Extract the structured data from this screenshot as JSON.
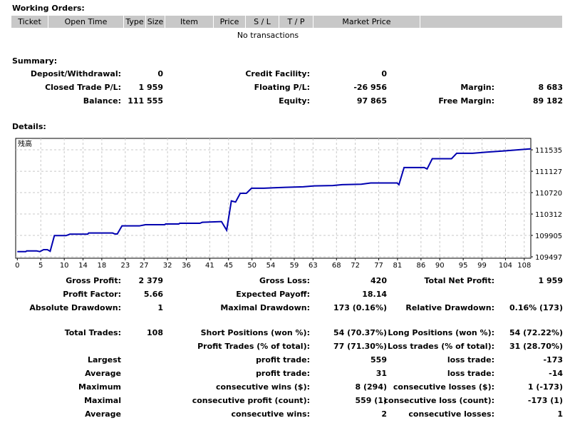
{
  "working_orders": {
    "title": "Working Orders:",
    "columns": [
      "Ticket",
      "Open Time",
      "Type",
      "Size",
      "Item",
      "Price",
      "S / L",
      "T / P",
      "Market Price",
      ""
    ],
    "empty_text": "No transactions"
  },
  "summary": {
    "title": "Summary:",
    "rows": [
      [
        "Deposit/Withdrawal:",
        "0",
        "Credit Facility:",
        "0",
        "",
        ""
      ],
      [
        "Closed Trade P/L:",
        "1 959",
        "Floating P/L:",
        "-26 956",
        "Margin:",
        "8 683"
      ],
      [
        "Balance:",
        "111 555",
        "Equity:",
        "97 865",
        "Free Margin:",
        "89 182"
      ]
    ]
  },
  "details": {
    "title": "Details:"
  },
  "chart_data": {
    "type": "line",
    "title": "残高",
    "series_color": "#0000b0",
    "x_ticks": [
      0,
      5,
      10,
      14,
      18,
      23,
      27,
      32,
      36,
      41,
      45,
      50,
      54,
      59,
      63,
      68,
      72,
      77,
      81,
      86,
      90,
      95,
      99,
      104,
      108
    ],
    "y_ticks": [
      111535,
      111127,
      110720,
      110312,
      109905,
      109497
    ],
    "xlim": [
      -0.35,
      109.4
    ],
    "ylim": [
      109470,
      111753
    ],
    "grid": true,
    "points": [
      [
        0,
        109596
      ],
      [
        1.8,
        109596
      ],
      [
        2,
        109610
      ],
      [
        4.1,
        109610
      ],
      [
        4.8,
        109596
      ],
      [
        5.6,
        109633
      ],
      [
        6.4,
        109633
      ],
      [
        7,
        109602
      ],
      [
        7.9,
        109901
      ],
      [
        10.4,
        109901
      ],
      [
        11.2,
        109928
      ],
      [
        15,
        109928
      ],
      [
        15.2,
        109950
      ],
      [
        20.3,
        109950
      ],
      [
        20.8,
        109932
      ],
      [
        21.3,
        109932
      ],
      [
        22.3,
        110086
      ],
      [
        26,
        110086
      ],
      [
        27.3,
        110109
      ],
      [
        31.4,
        110109
      ],
      [
        31.6,
        110122
      ],
      [
        34.4,
        110122
      ],
      [
        34.6,
        110136
      ],
      [
        38.9,
        110136
      ],
      [
        39.4,
        110154
      ],
      [
        43.5,
        110168
      ],
      [
        44.6,
        110004
      ],
      [
        45.6,
        110562
      ],
      [
        46.5,
        110540
      ],
      [
        47.5,
        110707
      ],
      [
        48.8,
        110707
      ],
      [
        49.9,
        110803
      ],
      [
        52.5,
        110803
      ],
      [
        57.1,
        110821
      ],
      [
        60.9,
        110830
      ],
      [
        63.2,
        110848
      ],
      [
        67.2,
        110855
      ],
      [
        69.2,
        110871
      ],
      [
        73.3,
        110880
      ],
      [
        75.3,
        110903
      ],
      [
        80.9,
        110903
      ],
      [
        81.3,
        110871
      ],
      [
        82.4,
        111198
      ],
      [
        86.7,
        111198
      ],
      [
        87.3,
        111170
      ],
      [
        88.4,
        111365
      ],
      [
        92.5,
        111365
      ],
      [
        93.6,
        111469
      ],
      [
        97,
        111469
      ],
      [
        100,
        111492
      ],
      [
        103.6,
        111514
      ],
      [
        109.4,
        111555
      ]
    ]
  },
  "stats": {
    "rows": [
      [
        "Gross Profit:",
        "2 379",
        "Gross Loss:",
        "420",
        "Total Net Profit:",
        "1 959"
      ],
      [
        "Profit Factor:",
        "5.66",
        "Expected Payoff:",
        "18.14",
        "",
        ""
      ],
      [
        "Absolute Drawdown:",
        "1",
        "Maximal Drawdown:",
        "173 (0.16%)",
        "Relative Drawdown:",
        "0.16% (173)"
      ],
      [
        "Total Trades:",
        "108",
        "Short Positions (won %):",
        "54 (70.37%)",
        "Long Positions (won %):",
        "54 (72.22%)"
      ],
      [
        "",
        "",
        "Profit Trades (% of total):",
        "77 (71.30%)",
        "Loss trades (% of total):",
        "31 (28.70%)"
      ],
      [
        "Largest",
        "",
        "profit trade:",
        "559",
        "loss trade:",
        "-173"
      ],
      [
        "Average",
        "",
        "profit trade:",
        "31",
        "loss trade:",
        "-14"
      ],
      [
        "Maximum",
        "",
        "consecutive wins ($):",
        "8 (294)",
        "consecutive losses ($):",
        "1 (-173)"
      ],
      [
        "Maximal",
        "",
        "consecutive profit (count):",
        "559 (1)",
        "consecutive loss (count):",
        "-173 (1)"
      ],
      [
        "Average",
        "",
        "consecutive wins:",
        "2",
        "consecutive losses:",
        "1"
      ]
    ]
  }
}
